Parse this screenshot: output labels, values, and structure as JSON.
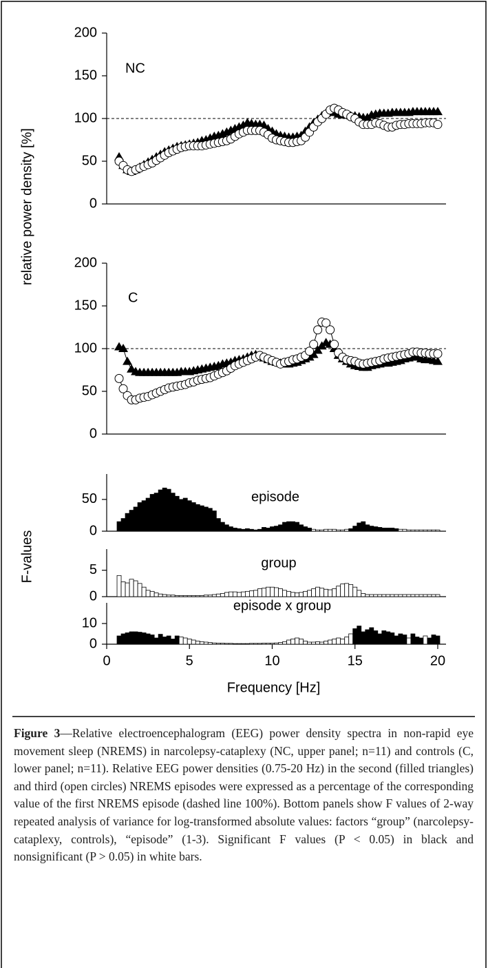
{
  "chart_data": [
    {
      "type": "line",
      "label": "NC",
      "ylabel": "relative power density [%]",
      "x": [
        0.75,
        1,
        1.25,
        1.5,
        1.75,
        2,
        2.25,
        2.5,
        2.75,
        3,
        3.25,
        3.5,
        3.75,
        4,
        4.25,
        4.5,
        4.75,
        5,
        5.25,
        5.5,
        5.75,
        6,
        6.25,
        6.5,
        6.75,
        7,
        7.25,
        7.5,
        7.75,
        8,
        8.25,
        8.5,
        8.75,
        9,
        9.25,
        9.5,
        9.75,
        10,
        10.25,
        10.5,
        10.75,
        11,
        11.25,
        11.5,
        11.75,
        12,
        12.25,
        12.5,
        12.75,
        13,
        13.25,
        13.5,
        13.75,
        14,
        14.25,
        14.5,
        14.75,
        15,
        15.25,
        15.5,
        15.75,
        16,
        16.25,
        16.5,
        16.75,
        17,
        17.25,
        17.5,
        17.75,
        18,
        18.25,
        18.5,
        18.75,
        19,
        19.25,
        19.5,
        19.75,
        20
      ],
      "xlim": [
        0,
        20.5
      ],
      "ylim": [
        0,
        200
      ],
      "yticks": [
        0,
        50,
        100,
        150,
        200
      ],
      "refline": 100,
      "series": [
        {
          "marker": "triangle",
          "color": "#000000",
          "values": [
            55,
            45,
            40,
            38,
            40,
            43,
            46,
            49,
            52,
            55,
            58,
            61,
            63,
            65,
            67,
            68,
            69,
            70,
            71,
            72,
            74,
            75,
            77,
            79,
            80,
            82,
            84,
            86,
            88,
            90,
            92,
            95,
            94,
            93,
            93,
            92,
            88,
            85,
            82,
            80,
            79,
            78,
            78,
            79,
            80,
            85,
            90,
            95,
            99,
            103,
            106,
            108,
            107,
            105,
            104,
            104,
            103,
            103,
            102,
            101,
            101,
            104,
            105,
            106,
            106,
            106,
            107,
            107,
            107,
            107,
            107,
            108,
            108,
            108,
            108,
            108,
            108,
            108
          ]
        },
        {
          "marker": "circle",
          "color": "#000000",
          "values": [
            50,
            45,
            40,
            38,
            40,
            42,
            44,
            46,
            48,
            51,
            54,
            57,
            60,
            62,
            64,
            66,
            67,
            68,
            68,
            68,
            68,
            69,
            70,
            71,
            72,
            73,
            74,
            76,
            79,
            82,
            84,
            86,
            86,
            86,
            86,
            84,
            81,
            77,
            75,
            74,
            73,
            72,
            72,
            73,
            74,
            78,
            84,
            90,
            96,
            100,
            105,
            110,
            112,
            110,
            107,
            105,
            102,
            100,
            96,
            93,
            93,
            93,
            95,
            94,
            92,
            90,
            90,
            92,
            93,
            93,
            94,
            94,
            94,
            94,
            95,
            95,
            95,
            93
          ]
        }
      ]
    },
    {
      "type": "line",
      "label": "C",
      "x": [
        0.75,
        1,
        1.25,
        1.5,
        1.75,
        2,
        2.25,
        2.5,
        2.75,
        3,
        3.25,
        3.5,
        3.75,
        4,
        4.25,
        4.5,
        4.75,
        5,
        5.25,
        5.5,
        5.75,
        6,
        6.25,
        6.5,
        6.75,
        7,
        7.25,
        7.5,
        7.75,
        8,
        8.25,
        8.5,
        8.75,
        9,
        9.25,
        9.5,
        9.75,
        10,
        10.25,
        10.5,
        10.75,
        11,
        11.25,
        11.5,
        11.75,
        12,
        12.25,
        12.5,
        12.75,
        13,
        13.25,
        13.5,
        13.75,
        14,
        14.25,
        14.5,
        14.75,
        15,
        15.25,
        15.5,
        15.75,
        16,
        16.25,
        16.5,
        16.75,
        17,
        17.25,
        17.5,
        17.75,
        18,
        18.25,
        18.5,
        18.75,
        19,
        19.25,
        19.5,
        19.75,
        20
      ],
      "xlim": [
        0,
        20.5
      ],
      "ylim": [
        0,
        200
      ],
      "yticks": [
        0,
        50,
        100,
        150,
        200
      ],
      "refline": 100,
      "series": [
        {
          "marker": "triangle",
          "color": "#000000",
          "values": [
            102,
            100,
            85,
            76,
            73,
            72,
            72,
            72,
            72,
            72,
            72,
            72,
            72,
            72,
            72,
            73,
            73,
            73,
            74,
            75,
            76,
            77,
            78,
            79,
            80,
            82,
            83,
            84,
            86,
            87,
            88,
            90,
            92,
            93,
            91,
            89,
            87,
            85,
            84,
            83,
            82,
            82,
            83,
            84,
            86,
            88,
            90,
            93,
            98,
            103,
            107,
            105,
            100,
            92,
            88,
            85,
            82,
            80,
            79,
            78,
            78,
            80,
            81,
            82,
            83,
            83,
            84,
            85,
            86,
            88,
            89,
            90,
            90,
            88,
            87,
            87,
            86,
            85
          ]
        },
        {
          "marker": "circle",
          "color": "#000000",
          "values": [
            65,
            53,
            45,
            40,
            40,
            42,
            43,
            44,
            46,
            48,
            50,
            52,
            54,
            55,
            56,
            57,
            58,
            60,
            61,
            63,
            64,
            65,
            66,
            68,
            70,
            72,
            74,
            77,
            80,
            82,
            84,
            86,
            88,
            90,
            92,
            90,
            88,
            86,
            84,
            82,
            84,
            85,
            87,
            88,
            90,
            92,
            97,
            105,
            122,
            131,
            130,
            122,
            105,
            95,
            90,
            87,
            86,
            85,
            83,
            82,
            83,
            84,
            85,
            86,
            88,
            89,
            90,
            91,
            92,
            93,
            94,
            96,
            96,
            95,
            95,
            94,
            94,
            94
          ]
        }
      ]
    },
    {
      "type": "bar",
      "label": "episode",
      "x": [
        0.75,
        1,
        1.25,
        1.5,
        1.75,
        2,
        2.25,
        2.5,
        2.75,
        3,
        3.25,
        3.5,
        3.75,
        4,
        4.25,
        4.5,
        4.75,
        5,
        5.25,
        5.5,
        5.75,
        6,
        6.25,
        6.5,
        6.75,
        7,
        7.25,
        7.5,
        7.75,
        8,
        8.25,
        8.5,
        8.75,
        9,
        9.25,
        9.5,
        9.75,
        10,
        10.25,
        10.5,
        10.75,
        11,
        11.25,
        11.5,
        11.75,
        12,
        12.25,
        12.5,
        12.75,
        13,
        13.25,
        13.5,
        13.75,
        14,
        14.25,
        14.5,
        14.75,
        15,
        15.25,
        15.5,
        15.75,
        16,
        16.25,
        16.5,
        16.75,
        17,
        17.25,
        17.5,
        17.75,
        18,
        18.25,
        18.5,
        18.75,
        19,
        19.25,
        19.5,
        19.75,
        20
      ],
      "xlim": [
        0,
        20.5
      ],
      "ylim": [
        0,
        90
      ],
      "yticks": [
        0,
        50
      ],
      "values": [
        15,
        20,
        28,
        33,
        38,
        45,
        48,
        52,
        58,
        60,
        65,
        68,
        66,
        60,
        55,
        50,
        52,
        48,
        45,
        42,
        40,
        38,
        36,
        32,
        20,
        14,
        10,
        7,
        5,
        4,
        3,
        4,
        3,
        2,
        3,
        6,
        5,
        7,
        8,
        10,
        14,
        15,
        15,
        14,
        10,
        7,
        5,
        3,
        2,
        2,
        3,
        3,
        3,
        2,
        2,
        3,
        4,
        8,
        13,
        15,
        10,
        8,
        7,
        6,
        5,
        5,
        5,
        4,
        3,
        3,
        2,
        2,
        2,
        2,
        2,
        2,
        2,
        2
      ],
      "colors": [
        "#000",
        "#000",
        "#000",
        "#000",
        "#000",
        "#000",
        "#000",
        "#000",
        "#000",
        "#000",
        "#000",
        "#000",
        "#000",
        "#000",
        "#000",
        "#000",
        "#000",
        "#000",
        "#000",
        "#000",
        "#000",
        "#000",
        "#000",
        "#000",
        "#000",
        "#000",
        "#000",
        "#000",
        "#000",
        "#000",
        "#000",
        "#000",
        "#000",
        "#000",
        "#000",
        "#000",
        "#000",
        "#000",
        "#000",
        "#000",
        "#000",
        "#000",
        "#000",
        "#000",
        "#000",
        "#000",
        "#000",
        "#fff",
        "#fff",
        "#fff",
        "#fff",
        "#fff",
        "#fff",
        "#fff",
        "#fff",
        "#fff",
        "#000",
        "#000",
        "#000",
        "#000",
        "#000",
        "#000",
        "#000",
        "#000",
        "#000",
        "#000",
        "#000",
        "#000",
        "#fff",
        "#fff",
        "#fff",
        "#fff",
        "#fff",
        "#fff",
        "#fff",
        "#fff",
        "#fff",
        "#fff"
      ]
    },
    {
      "type": "bar",
      "label": "group",
      "ylabel": "F-values",
      "x": [
        0.75,
        1,
        1.25,
        1.5,
        1.75,
        2,
        2.25,
        2.5,
        2.75,
        3,
        3.25,
        3.5,
        3.75,
        4,
        4.25,
        4.5,
        4.75,
        5,
        5.25,
        5.5,
        5.75,
        6,
        6.25,
        6.5,
        6.75,
        7,
        7.25,
        7.5,
        7.75,
        8,
        8.25,
        8.5,
        8.75,
        9,
        9.25,
        9.5,
        9.75,
        10,
        10.25,
        10.5,
        10.75,
        11,
        11.25,
        11.5,
        11.75,
        12,
        12.25,
        12.5,
        12.75,
        13,
        13.25,
        13.5,
        13.75,
        14,
        14.25,
        14.5,
        14.75,
        15,
        15.25,
        15.5,
        15.75,
        16,
        16.25,
        16.5,
        16.75,
        17,
        17.25,
        17.5,
        17.75,
        18,
        18.25,
        18.5,
        18.75,
        19,
        19.25,
        19.5,
        19.75,
        20
      ],
      "xlim": [
        0,
        20.5
      ],
      "ylim": [
        0,
        9
      ],
      "yticks": [
        0,
        5
      ],
      "values": [
        4,
        2.8,
        2.6,
        3.3,
        3,
        2.5,
        1.8,
        1.2,
        1,
        0.7,
        0.5,
        0.4,
        0.3,
        0.3,
        0.2,
        0.2,
        0.2,
        0.2,
        0.2,
        0.2,
        0.2,
        0.3,
        0.3,
        0.4,
        0.5,
        0.6,
        0.8,
        0.9,
        0.9,
        0.8,
        0.9,
        1,
        1.1,
        1.2,
        1.5,
        1.6,
        1.8,
        1.8,
        1.7,
        1.5,
        1.2,
        1,
        0.8,
        0.7,
        0.8,
        1,
        1.2,
        1.5,
        1.8,
        1.6,
        1.4,
        1.3,
        1.5,
        2,
        2.4,
        2.5,
        2.3,
        1.8,
        1.2,
        0.6,
        0.4,
        0.4,
        0.4,
        0.4,
        0.4,
        0.4,
        0.4,
        0.4,
        0.4,
        0.4,
        0.4,
        0.4,
        0.4,
        0.4,
        0.4,
        0.4,
        0.4,
        0.4
      ],
      "colors": [
        "#fff",
        "#fff",
        "#fff",
        "#fff",
        "#fff",
        "#fff",
        "#fff",
        "#fff",
        "#fff",
        "#fff",
        "#fff",
        "#fff",
        "#fff",
        "#fff",
        "#fff",
        "#fff",
        "#fff",
        "#fff",
        "#fff",
        "#fff",
        "#fff",
        "#fff",
        "#fff",
        "#fff",
        "#fff",
        "#fff",
        "#fff",
        "#fff",
        "#fff",
        "#fff",
        "#fff",
        "#fff",
        "#fff",
        "#fff",
        "#fff",
        "#fff",
        "#fff",
        "#fff",
        "#fff",
        "#fff",
        "#fff",
        "#fff",
        "#fff",
        "#fff",
        "#fff",
        "#fff",
        "#fff",
        "#fff",
        "#fff",
        "#fff",
        "#fff",
        "#fff",
        "#fff",
        "#fff",
        "#fff",
        "#fff",
        "#fff",
        "#fff",
        "#fff",
        "#fff",
        "#fff",
        "#fff",
        "#fff",
        "#fff",
        "#fff",
        "#fff",
        "#fff",
        "#fff",
        "#fff",
        "#fff",
        "#fff",
        "#fff",
        "#fff",
        "#fff",
        "#fff",
        "#fff",
        "#fff",
        "#fff"
      ]
    },
    {
      "type": "bar",
      "label": "episode x group",
      "xlabel": "Frequency [Hz]",
      "x": [
        0.75,
        1,
        1.25,
        1.5,
        1.75,
        2,
        2.25,
        2.5,
        2.75,
        3,
        3.25,
        3.5,
        3.75,
        4,
        4.25,
        4.5,
        4.75,
        5,
        5.25,
        5.5,
        5.75,
        6,
        6.25,
        6.5,
        6.75,
        7,
        7.25,
        7.5,
        7.75,
        8,
        8.25,
        8.5,
        8.75,
        9,
        9.25,
        9.5,
        9.75,
        10,
        10.25,
        10.5,
        10.75,
        11,
        11.25,
        11.5,
        11.75,
        12,
        12.25,
        12.5,
        12.75,
        13,
        13.25,
        13.5,
        13.75,
        14,
        14.25,
        14.5,
        14.75,
        15,
        15.25,
        15.5,
        15.75,
        16,
        16.25,
        16.5,
        16.75,
        17,
        17.25,
        17.5,
        17.75,
        18,
        18.25,
        18.5,
        18.75,
        19,
        19.25,
        19.5,
        19.75,
        20
      ],
      "xlim": [
        0,
        20.5
      ],
      "xticks": [
        0,
        5,
        10,
        15,
        20
      ],
      "ylim": [
        0,
        20
      ],
      "yticks": [
        0,
        10
      ],
      "values": [
        4,
        5,
        5.5,
        6,
        6,
        5.8,
        5.5,
        5,
        4.5,
        3,
        4.8,
        3.5,
        4,
        2.5,
        4,
        3.5,
        3,
        2.5,
        2,
        1.5,
        1.2,
        1,
        0.8,
        0.6,
        0.5,
        0.5,
        0.4,
        0.4,
        0.3,
        0.3,
        0.3,
        0.3,
        0.4,
        0.4,
        0.4,
        0.5,
        0.5,
        0.5,
        0.6,
        0.8,
        1.2,
        2,
        2.5,
        3,
        2.5,
        1.5,
        1,
        1,
        1.2,
        1,
        1.5,
        2,
        2.5,
        3,
        2.5,
        3.5,
        5,
        7.5,
        8.8,
        6,
        7,
        8,
        6.5,
        5,
        6.5,
        6,
        5.5,
        4,
        5,
        4.5,
        3,
        5,
        3.5,
        3,
        4,
        3,
        4.5,
        4
      ],
      "colors": [
        "#000",
        "#000",
        "#000",
        "#000",
        "#000",
        "#000",
        "#000",
        "#000",
        "#000",
        "#000",
        "#000",
        "#000",
        "#000",
        "#000",
        "#000",
        "#fff",
        "#fff",
        "#fff",
        "#fff",
        "#fff",
        "#fff",
        "#fff",
        "#fff",
        "#fff",
        "#fff",
        "#fff",
        "#fff",
        "#fff",
        "#fff",
        "#fff",
        "#fff",
        "#fff",
        "#fff",
        "#fff",
        "#fff",
        "#fff",
        "#fff",
        "#fff",
        "#fff",
        "#fff",
        "#fff",
        "#fff",
        "#fff",
        "#fff",
        "#fff",
        "#fff",
        "#fff",
        "#fff",
        "#fff",
        "#fff",
        "#fff",
        "#fff",
        "#fff",
        "#fff",
        "#fff",
        "#fff",
        "#fff",
        "#000",
        "#000",
        "#000",
        "#000",
        "#000",
        "#000",
        "#000",
        "#000",
        "#000",
        "#000",
        "#000",
        "#000",
        "#000",
        "#fff",
        "#000",
        "#000",
        "#000",
        "#fff",
        "#000",
        "#000",
        "#000"
      ]
    }
  ],
  "caption": {
    "label": "Figure 3",
    "text": "—Relative electroencephalogram (EEG) power density spectra in non-rapid eye movement sleep (NREMS) in narcolepsy-cataplexy (NC, upper panel; n=11) and controls (C, lower panel; n=11). Relative EEG power densities (0.75-20 Hz) in the second (filled triangles) and third (open circles) NREMS episodes were expressed as a percentage of the corresponding value of the first NREMS episode (dashed line 100%). Bottom panels show F values of 2-way repeated analysis of variance for log-transformed absolute values: factors “group” (narcolepsy-cataplexy, controls), “episode” (1-3). Significant F values (P < 0.05) in black and nonsignificant (P > 0.05) in white bars."
  }
}
